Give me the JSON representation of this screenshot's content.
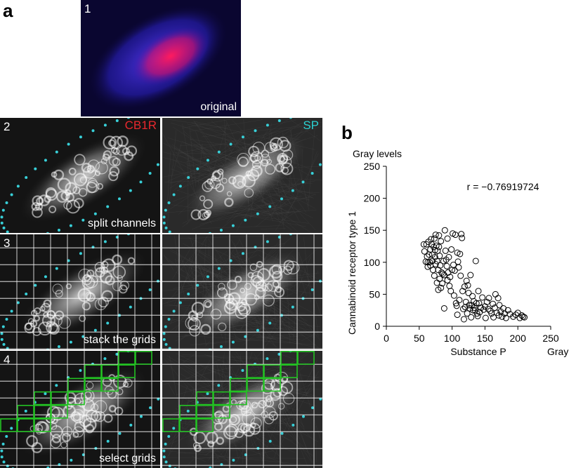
{
  "panel_a": {
    "letter": "a",
    "steps": [
      {
        "num": "1",
        "caption": "original"
      },
      {
        "num": "2",
        "caption": "split channels"
      },
      {
        "num": "3",
        "caption": "stack the grids"
      },
      {
        "num": "4",
        "caption": "select grids"
      }
    ],
    "channels": [
      {
        "label": "CB1R",
        "color": "#e8282e"
      },
      {
        "label": "SP",
        "color": "#2ad1d1"
      }
    ],
    "outline_color": "#38d0d8",
    "grid_color": "#ffffff",
    "select_color": "#23c223"
  },
  "panel_b": {
    "letter": "b"
  },
  "chart_data": {
    "type": "scatter",
    "xlabel": "Substance P",
    "xunit": "Gray levels",
    "ylabel": "Cannabinoid receptor type 1",
    "yunit": "Gray levels",
    "annotation": "r = −0.76919724",
    "xlim": [
      0,
      250
    ],
    "ylim": [
      0,
      250
    ],
    "xticks": [
      0,
      50,
      100,
      150,
      200,
      250
    ],
    "yticks": [
      0,
      50,
      100,
      150,
      200,
      250
    ],
    "marker": "open-circle",
    "points": [
      [
        57,
        128
      ],
      [
        58,
        117
      ],
      [
        60,
        101
      ],
      [
        61,
        128
      ],
      [
        62,
        109
      ],
      [
        63,
        100
      ],
      [
        63,
        93
      ],
      [
        64,
        132
      ],
      [
        65,
        112
      ],
      [
        66,
        100
      ],
      [
        67,
        120
      ],
      [
        67,
        95
      ],
      [
        68,
        136
      ],
      [
        69,
        128
      ],
      [
        70,
        112
      ],
      [
        70,
        102
      ],
      [
        71,
        88
      ],
      [
        72,
        124
      ],
      [
        73,
        137
      ],
      [
        73,
        79
      ],
      [
        74,
        119
      ],
      [
        74,
        108
      ],
      [
        75,
        143
      ],
      [
        75,
        97
      ],
      [
        76,
        126
      ],
      [
        77,
        102
      ],
      [
        77,
        68
      ],
      [
        78,
        118
      ],
      [
        79,
        88
      ],
      [
        79,
        57
      ],
      [
        80,
        142
      ],
      [
        80,
        124
      ],
      [
        81,
        110
      ],
      [
        81,
        74
      ],
      [
        82,
        95
      ],
      [
        83,
        133
      ],
      [
        83,
        60
      ],
      [
        84,
        84
      ],
      [
        85,
        67
      ],
      [
        86,
        82
      ],
      [
        87,
        102
      ],
      [
        88,
        80
      ],
      [
        88,
        28
      ],
      [
        89,
        150
      ],
      [
        90,
        118
      ],
      [
        91,
        104
      ],
      [
        92,
        94
      ],
      [
        93,
        137
      ],
      [
        93,
        72
      ],
      [
        94,
        84
      ],
      [
        95,
        108
      ],
      [
        96,
        63
      ],
      [
        97,
        77
      ],
      [
        98,
        55
      ],
      [
        99,
        120
      ],
      [
        100,
        88
      ],
      [
        101,
        145
      ],
      [
        102,
        96
      ],
      [
        103,
        48
      ],
      [
        104,
        87
      ],
      [
        105,
        143
      ],
      [
        106,
        36
      ],
      [
        107,
        32
      ],
      [
        108,
        115
      ],
      [
        108,
        18
      ],
      [
        109,
        101
      ],
      [
        110,
        92
      ],
      [
        111,
        41
      ],
      [
        112,
        113
      ],
      [
        113,
        79
      ],
      [
        114,
        144
      ],
      [
        115,
        138
      ],
      [
        116,
        55
      ],
      [
        117,
        27
      ],
      [
        118,
        11
      ],
      [
        119,
        62
      ],
      [
        120,
        30
      ],
      [
        121,
        38
      ],
      [
        122,
        71
      ],
      [
        123,
        20
      ],
      [
        124,
        64
      ],
      [
        125,
        52
      ],
      [
        126,
        33
      ],
      [
        127,
        28
      ],
      [
        128,
        80
      ],
      [
        129,
        14
      ],
      [
        130,
        33
      ],
      [
        131,
        47
      ],
      [
        132,
        25
      ],
      [
        133,
        39
      ],
      [
        134,
        29
      ],
      [
        135,
        25
      ],
      [
        136,
        102
      ],
      [
        137,
        36
      ],
      [
        138,
        20
      ],
      [
        139,
        16
      ],
      [
        140,
        55
      ],
      [
        141,
        36
      ],
      [
        142,
        22
      ],
      [
        144,
        29
      ],
      [
        146,
        45
      ],
      [
        148,
        26
      ],
      [
        150,
        31
      ],
      [
        151,
        13
      ],
      [
        153,
        38
      ],
      [
        155,
        27
      ],
      [
        156,
        44
      ],
      [
        158,
        24
      ],
      [
        160,
        20
      ],
      [
        162,
        35
      ],
      [
        163,
        14
      ],
      [
        165,
        29
      ],
      [
        166,
        50
      ],
      [
        168,
        21
      ],
      [
        170,
        44
      ],
      [
        171,
        17
      ],
      [
        172,
        33
      ],
      [
        174,
        23
      ],
      [
        176,
        15
      ],
      [
        178,
        28
      ],
      [
        180,
        20
      ],
      [
        182,
        13
      ],
      [
        185,
        25
      ],
      [
        188,
        19
      ],
      [
        193,
        15
      ],
      [
        197,
        18
      ],
      [
        200,
        21
      ],
      [
        203,
        13
      ],
      [
        206,
        17
      ],
      [
        208,
        15
      ],
      [
        210,
        14
      ]
    ]
  }
}
